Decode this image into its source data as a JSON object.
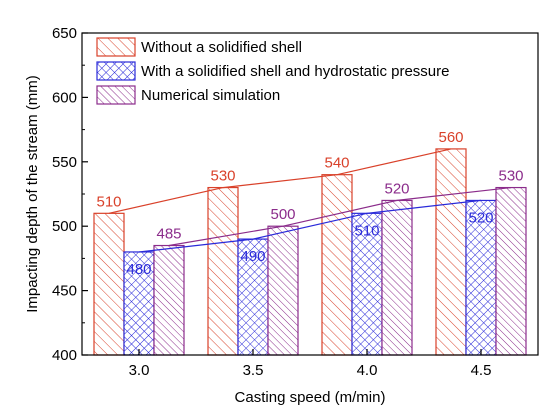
{
  "chart_data": {
    "type": "bar",
    "title": "",
    "xlabel": "Casting speed (m/min)",
    "ylabel": "Impacting depth of the stream (mm)",
    "ylim": [
      400,
      650
    ],
    "yticks": [
      400,
      450,
      500,
      550,
      600,
      650
    ],
    "categories": [
      "3.0",
      "3.5",
      "4.0",
      "4.5"
    ],
    "grid": false,
    "legend_position": "top-left",
    "series": [
      {
        "name": "Without a solidified shell",
        "values": [
          510,
          530,
          540,
          560
        ],
        "labels": [
          "510",
          "530",
          "540",
          "560"
        ],
        "color": "#d9412a",
        "pattern": "diagonal-hatch"
      },
      {
        "name": "With a solidified shell and hydrostatic pressure",
        "values": [
          480,
          490,
          510,
          520
        ],
        "labels": [
          "480",
          "490",
          "510",
          "520"
        ],
        "color": "#2a2ad9",
        "pattern": "cross-hatch"
      },
      {
        "name": "Numerical simulation",
        "values": [
          485,
          500,
          520,
          530
        ],
        "labels": [
          "485",
          "500",
          "520",
          "530"
        ],
        "color": "#8b2c8b",
        "pattern": "diagonal-hatch"
      }
    ]
  }
}
